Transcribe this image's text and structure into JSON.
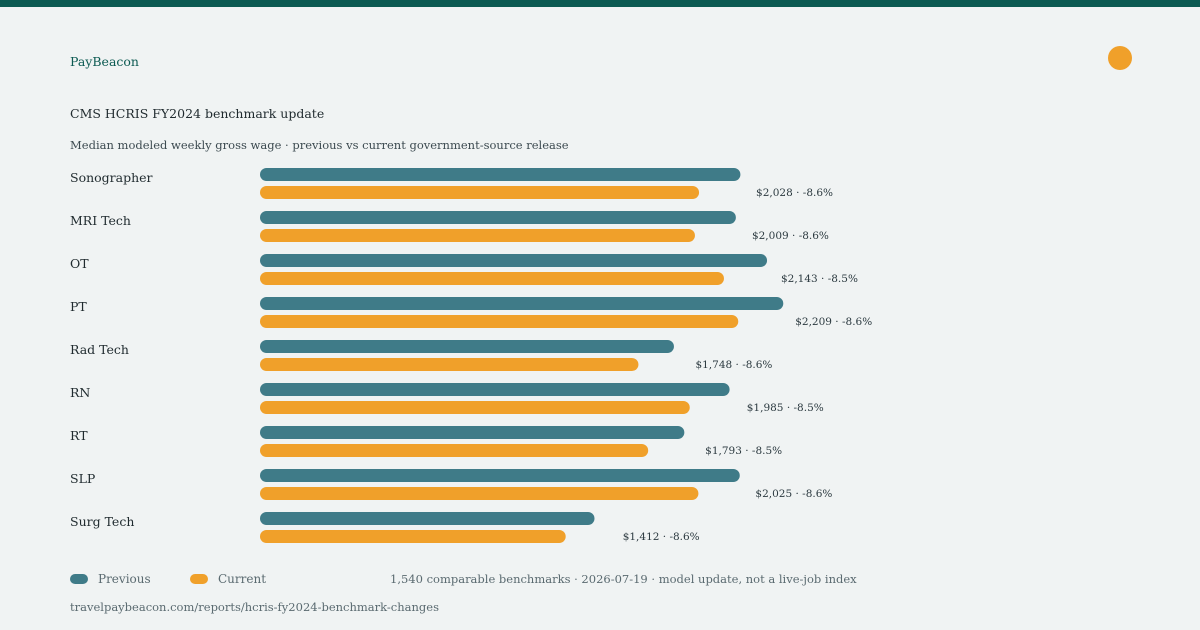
{
  "brand": {
    "name": "PayBeacon",
    "accent_color": "#f0a02a",
    "bar_color": "#0c5a52"
  },
  "header": {
    "title": "CMS HCRIS FY2024 benchmark update",
    "subtitle": "Median modeled weekly gross wage · previous vs current government-source release"
  },
  "chart_data": {
    "type": "bar",
    "orientation": "horizontal",
    "categories": [
      "Sonographer",
      "MRI Tech",
      "OT",
      "PT",
      "Rad Tech",
      "RN",
      "RT",
      "SLP",
      "Surg Tech"
    ],
    "series": [
      {
        "name": "Previous",
        "color": "#3f7b88",
        "values": [
          2219,
          2198,
          2342,
          2417,
          1912,
          2169,
          1960,
          2216,
          1545
        ]
      },
      {
        "name": "Current",
        "color": "#f0a02a",
        "values": [
          2028,
          2009,
          2143,
          2209,
          1748,
          1985,
          1793,
          2025,
          1412
        ]
      }
    ],
    "data_labels": [
      "$2,028 · -8.6%",
      "$2,009 · -8.6%",
      "$2,143 · -8.5%",
      "$2,209 · -8.6%",
      "$1,748 · -8.6%",
      "$1,985 · -8.5%",
      "$1,793 · -8.5%",
      "$2,025 · -8.6%",
      "$1,412 · -8.6%"
    ],
    "xlim": [
      0,
      2400
    ],
    "grid": false,
    "legend_position": "bottom-left"
  },
  "legend": {
    "previous": "Previous",
    "current": "Current"
  },
  "footer": {
    "note": "1,540 comparable benchmarks · 2026-07-19 · model update, not a live-job index",
    "url": "travelpaybeacon.com/reports/hcris-fy2024-benchmark-changes"
  }
}
